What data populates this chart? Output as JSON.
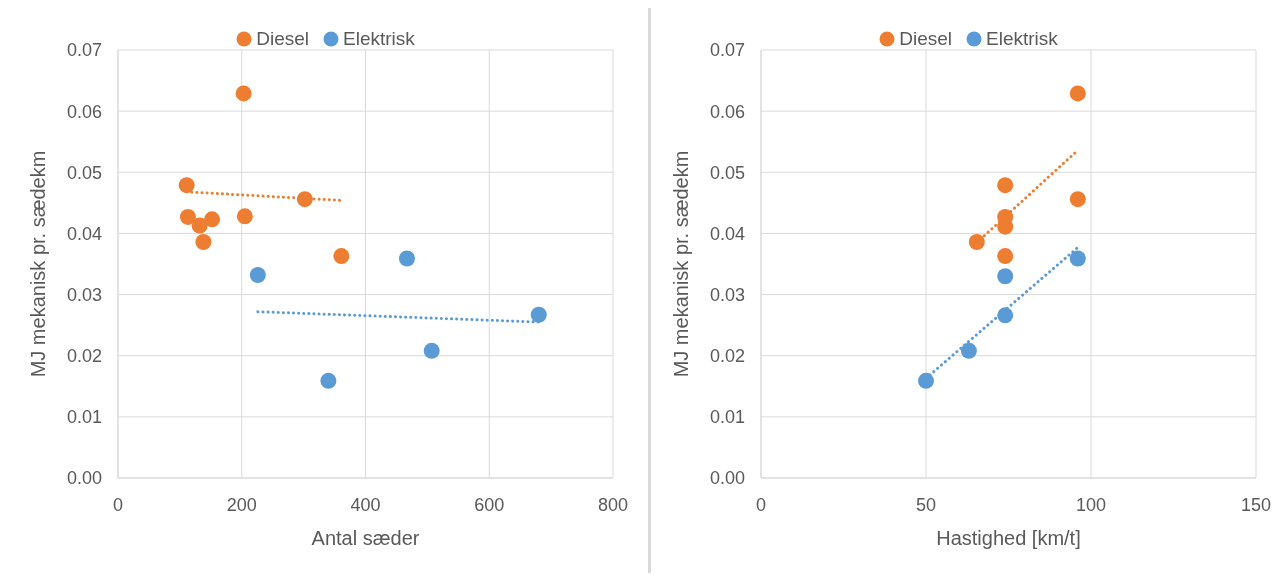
{
  "chart_data": [
    {
      "type": "scatter",
      "xlabel": "Antal sæder",
      "ylabel": "MJ mekanisk pr. sædekm",
      "xlim": [
        0,
        800
      ],
      "xticks": [
        0,
        200,
        400,
        600,
        800
      ],
      "ylim": [
        0,
        0.07
      ],
      "yticks": [
        {
          "value": 0,
          "label": "0.00"
        },
        {
          "value": 0.01,
          "label": "0.01"
        },
        {
          "value": 0.02,
          "label": "0.02"
        },
        {
          "value": 0.03,
          "label": "0.03"
        },
        {
          "value": 0.04,
          "label": "0.04"
        },
        {
          "value": 0.05,
          "label": "0.05"
        },
        {
          "value": 0.06,
          "label": "0.06"
        },
        {
          "value": 0.07,
          "label": "0.07"
        }
      ],
      "grid": true,
      "legend": "top",
      "marker": "circle",
      "series": [
        {
          "name": "Diesel",
          "color": "#ed7d31",
          "x": [
            111,
            113,
            132,
            138,
            152,
            203,
            205,
            302,
            361
          ],
          "values": [
            0.0479,
            0.0427,
            0.0413,
            0.0386,
            0.0423,
            0.0629,
            0.0428,
            0.0456,
            0.0363
          ]
        },
        {
          "name": "Elektrisk",
          "color": "#5b9bd5",
          "x": [
            226,
            340,
            467,
            507,
            680
          ],
          "values": [
            0.0332,
            0.0159,
            0.0359,
            0.0208,
            0.0267
          ]
        },
        {
          "type": "line",
          "color": "#ed7d31",
          "line_style": "dotted",
          "marker": "none",
          "x": [
            111,
            361
          ],
          "values": [
            0.0468,
            0.0454
          ]
        },
        {
          "type": "line",
          "color": "#5b9bd5",
          "line_style": "dotted",
          "marker": "none",
          "x": [
            226,
            680
          ],
          "values": [
            0.0272,
            0.0255
          ]
        }
      ]
    },
    {
      "type": "scatter",
      "xlabel": "Hastighed [km/t]",
      "ylabel": "MJ mekanisk pr. sædekm",
      "xlim": [
        0,
        150
      ],
      "xticks": [
        0,
        50,
        100,
        150
      ],
      "ylim": [
        0,
        0.07
      ],
      "yticks": [
        {
          "value": 0,
          "label": "0.00"
        },
        {
          "value": 0.01,
          "label": "0.01"
        },
        {
          "value": 0.02,
          "label": "0.02"
        },
        {
          "value": 0.03,
          "label": "0.03"
        },
        {
          "value": 0.04,
          "label": "0.04"
        },
        {
          "value": 0.05,
          "label": "0.05"
        },
        {
          "value": 0.06,
          "label": "0.06"
        },
        {
          "value": 0.07,
          "label": "0.07"
        }
      ],
      "grid": true,
      "legend": "top",
      "marker": "circle",
      "series": [
        {
          "name": "Diesel",
          "color": "#ed7d31",
          "x": [
            65.4,
            74,
            74,
            74,
            74,
            96,
            96
          ],
          "values": [
            0.0386,
            0.0479,
            0.0427,
            0.0411,
            0.0363,
            0.0629,
            0.0456
          ]
        },
        {
          "name": "Elektrisk",
          "color": "#5b9bd5",
          "x": [
            50,
            63,
            74,
            74,
            96
          ],
          "values": [
            0.0159,
            0.0208,
            0.0266,
            0.033,
            0.0359
          ]
        },
        {
          "type": "line",
          "color": "#ed7d31",
          "line_style": "dotted",
          "marker": "none",
          "x": [
            65.4,
            96
          ],
          "values": [
            0.0385,
            0.0536
          ]
        },
        {
          "type": "line",
          "color": "#5b9bd5",
          "line_style": "dotted",
          "marker": "none",
          "x": [
            50,
            96
          ],
          "values": [
            0.0163,
            0.0377
          ]
        }
      ]
    }
  ]
}
